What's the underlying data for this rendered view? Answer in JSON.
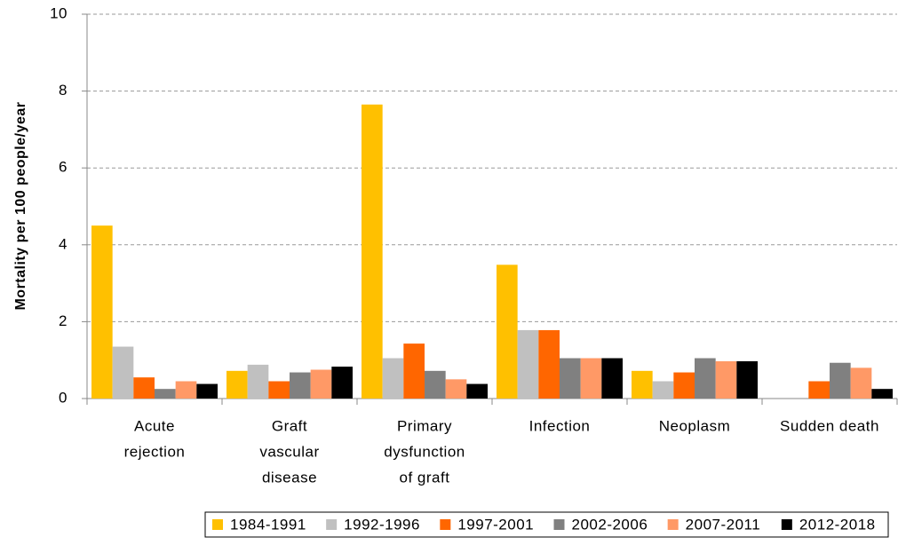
{
  "chart_data": {
    "type": "bar",
    "y_label": "Mortality per 100 people/year",
    "categories": [
      [
        "Acute",
        "rejection"
      ],
      [
        "Graft",
        "vascular",
        "disease"
      ],
      [
        "Primary",
        "dysfunction",
        "of graft"
      ],
      [
        "Infection"
      ],
      [
        "Neoplasm"
      ],
      [
        "Sudden death"
      ]
    ],
    "series": [
      {
        "name": "1984-1991",
        "color": "#ffc000",
        "values": [
          4.5,
          0.72,
          7.65,
          3.48,
          0.72,
          null
        ]
      },
      {
        "name": "1992-1996",
        "color": "#c0c0c0",
        "values": [
          1.35,
          0.88,
          1.05,
          1.78,
          0.45,
          null
        ]
      },
      {
        "name": "1997-2001",
        "color": "#ff6600",
        "values": [
          0.55,
          0.45,
          1.43,
          1.78,
          0.68,
          0.45
        ]
      },
      {
        "name": "2002-2006",
        "color": "#808080",
        "values": [
          0.25,
          0.68,
          0.72,
          1.05,
          1.05,
          0.93
        ]
      },
      {
        "name": "2007-2011",
        "color": "#ff9966",
        "values": [
          0.45,
          0.75,
          0.5,
          1.05,
          0.97,
          0.8
        ]
      },
      {
        "name": "2012-2018",
        "color": "#000000",
        "values": [
          0.38,
          0.83,
          0.38,
          1.05,
          0.97,
          0.25
        ]
      }
    ],
    "ylim": [
      0,
      10
    ],
    "yticks": [
      0,
      2,
      4,
      6,
      8,
      10
    ],
    "grid": true,
    "legend": "bottom"
  }
}
